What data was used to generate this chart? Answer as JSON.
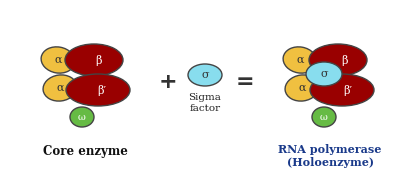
{
  "bg_color": "#ffffff",
  "colors": {
    "yellow": "#F0C040",
    "dark_red": "#990000",
    "green": "#66BB44",
    "light_blue": "#88DDEE",
    "label_blue": "#1a3a8a"
  },
  "core_label": "Core enzyme",
  "sigma_label": "Sigma\nfactor",
  "rna_label": "RNA polymerase\n(Holoenzyme)",
  "subunits": {
    "alpha": "α",
    "beta": "β",
    "beta_prime": "β′",
    "omega": "ω",
    "sigma": "σ"
  },
  "font_size_subunit": 8,
  "font_size_label": 7.5,
  "font_size_operator": 16
}
